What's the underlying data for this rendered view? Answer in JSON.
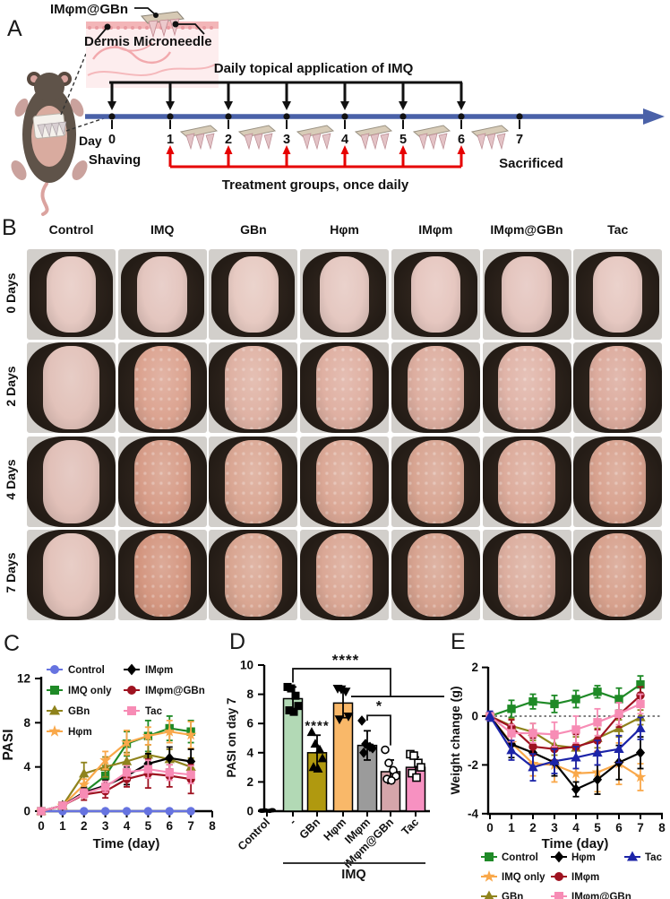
{
  "panels": {
    "a": {
      "letter": "A",
      "patch_label": "IMφm@GBn",
      "dermis_label": "Dermis",
      "microneedle_label": "Microneedle",
      "imq_title": "Daily topical application of IMQ",
      "day_word": "Day",
      "day_numbers": [
        "0",
        "1",
        "2",
        "3",
        "4",
        "5",
        "6",
        "7"
      ],
      "shaving": "Shaving",
      "sacrificed": "Sacrificed",
      "treatment": "Treatment groups, once daily",
      "timeline_color": "#4a61a8",
      "treatment_arrow_color": "#e60000"
    },
    "b": {
      "letter": "B",
      "columns": [
        "Control",
        "IMQ",
        "GBn",
        "Hφm",
        "IMφm",
        "IMφm@GBn",
        "Tac"
      ],
      "row_labels": [
        "0 Days",
        "2 Days",
        "4 Days",
        "7 Days"
      ],
      "background_color": "#d2cfcb",
      "fur_color": "#241c16",
      "skin_colors": [
        [
          "#e6c9c2",
          "#e4c6bf",
          "#e7cac2",
          "#e5c8c1",
          "#e6c7c0",
          "#e4c5be",
          "#e6c8c1"
        ],
        [
          "#e2c2ba",
          "#dca491",
          "#dfb2a4",
          "#dfb0a2",
          "#ddaea0",
          "#e0b4a8",
          "#dcab9d"
        ],
        [
          "#e1c0b8",
          "#d79d89",
          "#daa794",
          "#dba896",
          "#d8a592",
          "#dcab9b",
          "#d8a28f"
        ],
        [
          "#e3c3bb",
          "#d49781",
          "#d9a692",
          "#daa795",
          "#d7a390",
          "#dcae9f",
          "#d7a18d"
        ]
      ]
    },
    "c": {
      "letter": "C"
    },
    "d": {
      "letter": "D"
    },
    "e": {
      "letter": "E"
    }
  },
  "chart_data": [
    {
      "id": "C",
      "type": "line",
      "xlabel": "Time (day)",
      "ylabel": "PASI",
      "xlim": [
        0,
        8
      ],
      "ylim": [
        0,
        12
      ],
      "xticks": [
        0,
        1,
        2,
        3,
        4,
        5,
        6,
        7,
        8
      ],
      "yticks": [
        0,
        4,
        8,
        12
      ],
      "x": [
        0,
        1,
        2,
        3,
        4,
        5,
        6,
        7
      ],
      "legend_position": "top-left",
      "series": [
        {
          "name": "Control",
          "color": "#6673e0",
          "marker": "circle",
          "values": [
            0,
            0,
            0,
            0,
            0,
            0,
            0,
            0
          ],
          "errors": [
            0,
            0,
            0,
            0,
            0,
            0,
            0,
            0
          ]
        },
        {
          "name": "IMQ only",
          "color": "#1f8a27",
          "marker": "square",
          "values": [
            0,
            0.5,
            1.7,
            3.2,
            6.1,
            6.8,
            7.5,
            7.2
          ],
          "errors": [
            0,
            0.15,
            0.5,
            0.9,
            1.1,
            1.4,
            1.1,
            1.0
          ]
        },
        {
          "name": "GBn",
          "color": "#8f831c",
          "marker": "triangle",
          "values": [
            0,
            0.5,
            3.4,
            4.0,
            4.5,
            5.1,
            4.7,
            4.0
          ],
          "errors": [
            0,
            0.15,
            1.0,
            0.9,
            0.8,
            0.9,
            0.9,
            0.8
          ]
        },
        {
          "name": "Hφm",
          "color": "#f9a84a",
          "marker": "star",
          "values": [
            0,
            0.5,
            2.4,
            4.6,
            6.2,
            6.8,
            7.2,
            6.9
          ],
          "errors": [
            0,
            0.15,
            0.5,
            0.8,
            1.1,
            0.8,
            1.0,
            1.2
          ]
        },
        {
          "name": "IMφm",
          "color": "#000000",
          "marker": "diamond",
          "values": [
            0,
            0.5,
            1.7,
            2.3,
            3.2,
            4.3,
            4.8,
            4.5
          ],
          "errors": [
            0,
            0.15,
            0.4,
            0.5,
            0.8,
            0.9,
            1.0,
            1.1
          ]
        },
        {
          "name": "IMφm@GBn",
          "color": "#9e1220",
          "marker": "circle",
          "values": [
            0,
            0.5,
            1.5,
            1.8,
            2.9,
            3.4,
            3.2,
            2.9
          ],
          "errors": [
            0,
            0.15,
            0.5,
            0.6,
            0.7,
            1.3,
            1.0,
            1.3
          ]
        },
        {
          "name": "Tac",
          "color": "#f78cb5",
          "marker": "square",
          "values": [
            0,
            0.5,
            1.6,
            2.2,
            3.5,
            3.8,
            3.5,
            3.3
          ],
          "errors": [
            0,
            0.15,
            0.4,
            0.5,
            0.6,
            0.8,
            0.7,
            0.8
          ]
        }
      ]
    },
    {
      "id": "D",
      "type": "bar",
      "ylabel": "PASI on day 7",
      "ylim": [
        0,
        10
      ],
      "yticks": [
        0,
        2,
        4,
        6,
        8,
        10
      ],
      "categories": [
        "Control",
        "-",
        "GBn",
        "Hφm",
        "IMφm",
        "IMφm@GBn",
        "Tac"
      ],
      "values": [
        0.05,
        7.7,
        4.0,
        7.4,
        4.5,
        2.7,
        3.0
      ],
      "errors": [
        0,
        0.8,
        1.2,
        1.0,
        1.0,
        0.8,
        0.7
      ],
      "bar_colors": [
        "#1a1a1a",
        "#b2d9b5",
        "#b0990f",
        "#f9b869",
        "#9b9b9b",
        "#d5a5aa",
        "#f791c1"
      ],
      "points": [
        [
          0.03,
          0.05,
          0.02,
          0.06,
          0.04
        ],
        [
          8.5,
          8.4,
          7.9,
          7.2,
          6.9,
          6.8
        ],
        [
          5.4,
          4.6,
          4.2,
          3.6,
          3.0,
          2.9
        ],
        [
          8.4,
          8.35,
          8.2,
          6.5,
          6.3
        ],
        [
          6.2,
          4.6,
          4.4,
          4.3,
          4.0
        ],
        [
          4.2,
          3.3,
          2.8,
          2.4,
          2.2,
          2.1
        ],
        [
          3.9,
          3.8,
          3.3,
          3.0,
          2.6,
          2.3
        ]
      ],
      "point_markers": [
        "dot",
        "square",
        "triangle",
        "triangle-down",
        "diamond",
        "circle-open",
        "square-open"
      ],
      "group_label": "IMQ",
      "group_span": [
        "-",
        "Tac"
      ],
      "significance": [
        {
          "label": "****",
          "type": "top-bracket",
          "from": "-",
          "to": "IMφm@GBn"
        },
        {
          "label": "****",
          "type": "above-bar",
          "at": "GBn"
        },
        {
          "label": "*",
          "type": "bracket",
          "from": "IMφm",
          "to": "IMφm@GBn"
        }
      ]
    },
    {
      "id": "E",
      "type": "line",
      "xlabel": "Time (day)",
      "ylabel": "Weight change (g)",
      "xlim": [
        0,
        8
      ],
      "ylim": [
        -4,
        2
      ],
      "xticks": [
        0,
        1,
        2,
        3,
        4,
        5,
        6,
        7,
        8
      ],
      "yticks": [
        -4,
        -2,
        0,
        2
      ],
      "zero_line": true,
      "x": [
        0,
        1,
        2,
        3,
        4,
        5,
        6,
        7
      ],
      "legend_position": "bottom",
      "series": [
        {
          "name": "Control",
          "color": "#1f8a27",
          "marker": "square",
          "values": [
            0,
            0.3,
            0.6,
            0.5,
            0.7,
            1.0,
            0.7,
            1.3
          ],
          "errors": [
            0.1,
            0.35,
            0.3,
            0.35,
            0.35,
            0.25,
            0.45,
            0.35
          ]
        },
        {
          "name": "IMQ only",
          "color": "#f9a84a",
          "marker": "star",
          "values": [
            0,
            -1.1,
            -1.95,
            -2.0,
            -2.35,
            -2.3,
            -1.95,
            -2.5
          ],
          "errors": [
            0.15,
            0.4,
            0.5,
            0.7,
            0.6,
            0.8,
            0.85,
            0.55
          ]
        },
        {
          "name": "GBn",
          "color": "#8f831c",
          "marker": "triangle",
          "values": [
            0,
            -0.4,
            -0.65,
            -1.2,
            -1.3,
            -0.9,
            -0.5,
            -0.05
          ],
          "errors": [
            0.1,
            0.3,
            0.35,
            0.4,
            0.45,
            0.4,
            0.35,
            0.3
          ]
        },
        {
          "name": "Hφm",
          "color": "#000000",
          "marker": "diamond",
          "values": [
            0,
            -1.15,
            -1.5,
            -1.9,
            -3.0,
            -2.6,
            -1.9,
            -1.5
          ],
          "errors": [
            0.15,
            0.55,
            0.6,
            0.55,
            0.3,
            0.6,
            0.7,
            0.65
          ]
        },
        {
          "name": "IMφm",
          "color": "#9e1220",
          "marker": "circle",
          "values": [
            0,
            -0.45,
            -1.25,
            -1.35,
            -1.25,
            -1.0,
            0.05,
            0.85
          ],
          "errors": [
            0.1,
            0.3,
            0.35,
            0.45,
            0.5,
            0.45,
            0.5,
            0.35
          ]
        },
        {
          "name": "IMφm@GBn",
          "color": "#f78cb5",
          "marker": "square",
          "values": [
            0,
            -0.7,
            -0.7,
            -0.75,
            -0.55,
            -0.25,
            0.1,
            0.5
          ],
          "errors": [
            0.1,
            0.35,
            0.4,
            0.5,
            0.55,
            0.55,
            0.45,
            0.4
          ]
        },
        {
          "name": "Tac",
          "color": "#1c24a8",
          "marker": "triangle",
          "values": [
            0,
            -1.4,
            -2.1,
            -1.85,
            -1.7,
            -1.5,
            -1.35,
            -0.5
          ],
          "errors": [
            0.2,
            0.4,
            0.55,
            0.5,
            0.45,
            0.5,
            0.55,
            0.45
          ]
        }
      ]
    }
  ]
}
